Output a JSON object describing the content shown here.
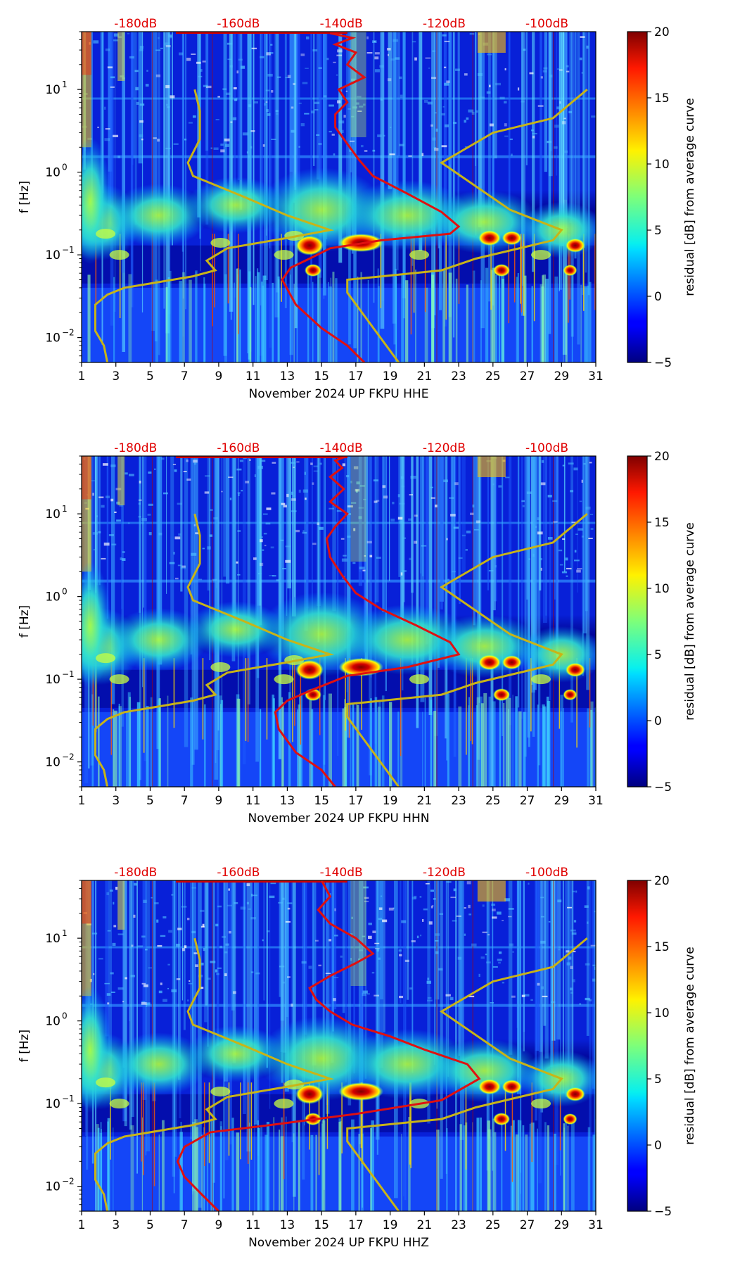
{
  "figure": {
    "colorbar_label": "residual [dB] from average curve",
    "colorbar_ticks": [
      "−5",
      "0",
      "5",
      "10",
      "15",
      "20"
    ],
    "colorbar_range": [
      -5,
      20
    ],
    "colormap": "jet",
    "x_ticks": [
      "1",
      "3",
      "5",
      "7",
      "9",
      "11",
      "13",
      "15",
      "17",
      "19",
      "21",
      "23",
      "25",
      "27",
      "29",
      "31"
    ],
    "y_label": "f [Hz]",
    "y_ticks": [
      "10",
      "10",
      "10",
      "10"
    ],
    "y_tick_exponents": [
      "1",
      "0",
      "−1",
      "−2"
    ],
    "db_labels": [
      "-180dB",
      "-160dB",
      "-140dB",
      "-120dB",
      "-100dB"
    ],
    "overlay_colors": {
      "psd_curve": "#e01010",
      "noise_model": "#c8b418",
      "db_label": "#e00000"
    }
  },
  "chart_data": [
    {
      "type": "heatmap",
      "xlabel": "November 2024 UP FKPU  HHE",
      "ylabel": "f [Hz]",
      "xlim": [
        1,
        31
      ],
      "ylim": [
        0.005,
        50
      ],
      "yscale": "log",
      "colorbar": {
        "label": "residual [dB] from average curve",
        "range": [
          -5,
          20
        ]
      },
      "top_axis_labels": [
        "-180dB",
        "-160dB",
        "-140dB",
        "-120dB",
        "-100dB"
      ],
      "noise_model_curves": [
        {
          "x": [
            2.5,
            2.3,
            1.8,
            1.8,
            2.5,
            3.5,
            5,
            7.5,
            8.8,
            8.3,
            9.5,
            13,
            15.5,
            13,
            10.5,
            7.5,
            7.2,
            7.9,
            7.9,
            7.6
          ],
          "y": [
            0.005,
            0.008,
            0.012,
            0.025,
            0.033,
            0.04,
            0.045,
            0.055,
            0.065,
            0.085,
            0.12,
            0.16,
            0.2,
            0.3,
            0.5,
            0.9,
            1.3,
            2.5,
            5.5,
            10
          ]
        },
        {
          "x": [
            19.5,
            16.5,
            16.5,
            22,
            24,
            28.5,
            29,
            26,
            22,
            25,
            28.5,
            30.5
          ],
          "y": [
            0.005,
            0.035,
            0.05,
            0.065,
            0.09,
            0.15,
            0.2,
            0.35,
            1.3,
            3,
            4.5,
            10
          ]
        }
      ],
      "psd_curve": {
        "x": [
          17.5,
          16.5,
          15,
          13.5,
          12.7,
          13.2,
          14.3,
          15.5,
          18.5,
          22.5,
          23,
          22,
          20,
          18,
          17.2,
          16.5,
          15.8,
          15.8,
          16.5,
          16,
          17.5,
          16.5,
          17,
          15.8,
          16.8,
          15.5,
          16.5
        ],
        "y": [
          0.005,
          0.008,
          0.013,
          0.025,
          0.05,
          0.07,
          0.09,
          0.12,
          0.15,
          0.18,
          0.22,
          0.33,
          0.55,
          0.9,
          1.4,
          2.2,
          3.5,
          5,
          7,
          10,
          14,
          20,
          28,
          35,
          42,
          48,
          50
        ]
      }
    },
    {
      "type": "heatmap",
      "xlabel": "November 2024 UP FKPU  HHN",
      "ylabel": "f [Hz]",
      "xlim": [
        1,
        31
      ],
      "ylim": [
        0.005,
        50
      ],
      "yscale": "log",
      "colorbar": {
        "label": "residual [dB] from average curve",
        "range": [
          -5,
          20
        ]
      },
      "top_axis_labels": [
        "-180dB",
        "-160dB",
        "-140dB",
        "-120dB",
        "-100dB"
      ],
      "noise_model_curves": [
        {
          "x": [
            2.5,
            2.3,
            1.8,
            1.8,
            2.5,
            3.5,
            5,
            7.5,
            8.8,
            8.3,
            9.5,
            13,
            15.5,
            13,
            10.5,
            7.5,
            7.2,
            7.9,
            7.9,
            7.6
          ],
          "y": [
            0.005,
            0.008,
            0.012,
            0.025,
            0.033,
            0.04,
            0.045,
            0.055,
            0.065,
            0.085,
            0.12,
            0.16,
            0.2,
            0.3,
            0.5,
            0.9,
            1.3,
            2.5,
            5.5,
            10
          ]
        },
        {
          "x": [
            19.5,
            16.5,
            16.5,
            22,
            24,
            28.5,
            29,
            26,
            22,
            25,
            28.5,
            30.5
          ],
          "y": [
            0.005,
            0.035,
            0.05,
            0.065,
            0.09,
            0.15,
            0.2,
            0.35,
            1.3,
            3,
            4.5,
            10
          ]
        }
      ],
      "psd_curve": {
        "x": [
          15.8,
          15,
          13.5,
          12.5,
          12.3,
          13,
          14.5,
          16.5,
          20,
          23,
          22.5,
          20.5,
          18.5,
          17,
          16.2,
          15.5,
          15.3,
          15.8,
          16.5,
          15.5,
          16.3,
          15.5,
          16.2,
          15.8,
          16.5
        ],
        "y": [
          0.005,
          0.008,
          0.013,
          0.025,
          0.04,
          0.055,
          0.075,
          0.11,
          0.14,
          0.2,
          0.28,
          0.45,
          0.7,
          1.1,
          1.8,
          3,
          5,
          7,
          10,
          14,
          20,
          28,
          36,
          44,
          50
        ]
      }
    },
    {
      "type": "heatmap",
      "xlabel": "November 2024 UP FKPU  HHZ",
      "ylabel": "f [Hz]",
      "xlim": [
        1,
        31
      ],
      "ylim": [
        0.005,
        50
      ],
      "yscale": "log",
      "colorbar": {
        "label": "residual [dB] from average curve",
        "range": [
          -5,
          20
        ]
      },
      "top_axis_labels": [
        "-180dB",
        "-160dB",
        "-140dB",
        "-120dB",
        "-100dB"
      ],
      "noise_model_curves": [
        {
          "x": [
            2.5,
            2.3,
            1.8,
            1.8,
            2.5,
            3.5,
            5,
            7.5,
            8.8,
            8.3,
            9.5,
            13,
            15.5,
            13,
            10.5,
            7.5,
            7.2,
            7.9,
            7.9,
            7.6
          ],
          "y": [
            0.005,
            0.008,
            0.012,
            0.025,
            0.033,
            0.04,
            0.045,
            0.055,
            0.065,
            0.085,
            0.12,
            0.16,
            0.2,
            0.3,
            0.5,
            0.9,
            1.3,
            2.5,
            5.5,
            10
          ]
        },
        {
          "x": [
            19.5,
            16.5,
            16.5,
            22,
            24,
            28.5,
            29,
            26,
            22,
            25,
            28.5,
            30.5
          ],
          "y": [
            0.005,
            0.035,
            0.05,
            0.065,
            0.09,
            0.15,
            0.2,
            0.35,
            1.3,
            3,
            4.5,
            10
          ]
        }
      ],
      "psd_curve": {
        "x": [
          9,
          8,
          7,
          6.6,
          7,
          8.5,
          12,
          17,
          22,
          24.2,
          23.5,
          21,
          19,
          16.8,
          15.5,
          14.7,
          14.3,
          15.5,
          17,
          18,
          17,
          15.5,
          14.8,
          15.5,
          15
        ],
        "y": [
          0.005,
          0.008,
          0.013,
          0.02,
          0.03,
          0.045,
          0.055,
          0.075,
          0.11,
          0.2,
          0.3,
          0.45,
          0.65,
          0.9,
          1.3,
          1.8,
          2.5,
          3.5,
          5,
          6.5,
          10,
          15,
          22,
          32,
          50
        ]
      }
    }
  ]
}
